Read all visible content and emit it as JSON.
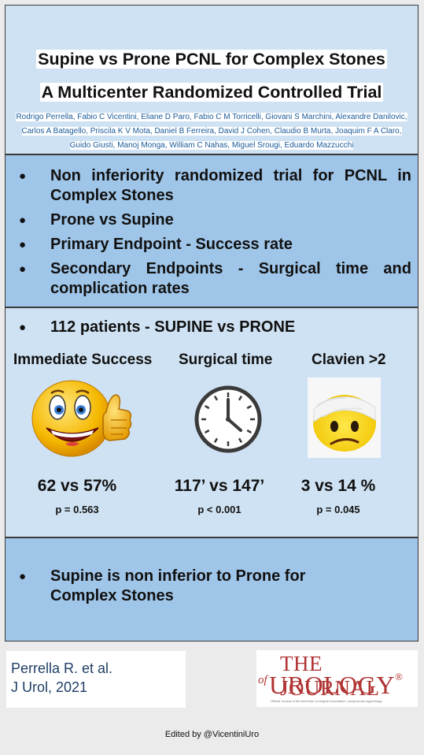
{
  "header": {
    "title_line1": "Supine vs Prone PCNL  for Complex Stones",
    "title_line2": "A Multicenter Randomized Controlled Trial",
    "authors": "Rodrigo Perrella, Fabio C Vicentini, Eliane D Paro, Fabio C M Torricelli, Giovani S Marchini, Alexandre Danilovic, Carlos A Batagello, Priscila K V Mota, Daniel B Ferreira, David J Cohen, Claudio B Murta, Joaquim F A Claro, Guido Giusti, Manoj Monga, William C Nahas, Miguel Srougi, Eduardo Mazzucchi"
  },
  "design": {
    "bullets": [
      "Non inferiority randomized trial for PCNL in Complex Stones",
      "Prone vs Supine",
      "Primary Endpoint -  Success  rate",
      "Secondary Endpoints - Surgical time and complication rates"
    ]
  },
  "results": {
    "cohort": "112 patients - SUPINE  vs PRONE",
    "metrics": [
      {
        "label": "Immediate Success",
        "value": "62 vs 57%",
        "p": "p = 0.563",
        "icon": "thumbs-up-emoji-icon"
      },
      {
        "label": "Surgical time",
        "value": "117’ vs 147’",
        "p": "p < 0.001",
        "icon": "clock-icon"
      },
      {
        "label": "Clavien >2",
        "value": "3 vs 14 %",
        "p": "p = 0.045",
        "icon": "bandaged-emoji-icon"
      }
    ]
  },
  "conclusion": {
    "text": "Supine is non inferior to Prone for Complex Stones"
  },
  "citation": {
    "line1": "Perrella R. et al.",
    "line2": "J Urol, 2021"
  },
  "journal": {
    "the": "THE JOURNAL",
    "of": "of",
    "name": "UROLOGY",
    "reg": "®",
    "subtitle": "Official Journal of the American Urological Association | auajournals.org/jurology"
  },
  "footer": {
    "edited_by": "Edited by @VicentiniUro"
  },
  "colors": {
    "panel_light": "#cfe2f3",
    "panel_dark": "#9fc5e8",
    "author_text": "#1a5a9a",
    "journal_red": "#b03333",
    "citation_text": "#1f3f66"
  }
}
